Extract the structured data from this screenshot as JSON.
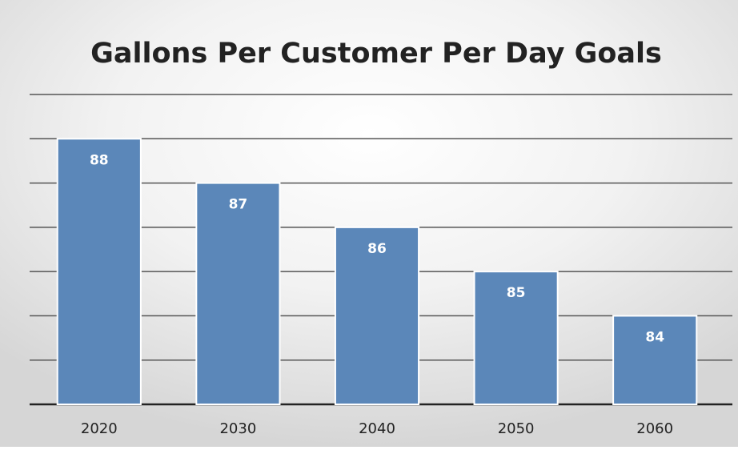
{
  "chart_data": {
    "type": "bar",
    "title": "Gallons Per Customer Per Day Goals",
    "categories": [
      "2020",
      "2030",
      "2040",
      "2050",
      "2060"
    ],
    "values": [
      88,
      87,
      86,
      85,
      84
    ],
    "color": "#5b87b9",
    "ylim": [
      82,
      89
    ],
    "yticks": [
      82,
      83,
      84,
      85,
      86,
      87,
      88,
      89
    ],
    "grid": true,
    "ytick_labels": false
  }
}
